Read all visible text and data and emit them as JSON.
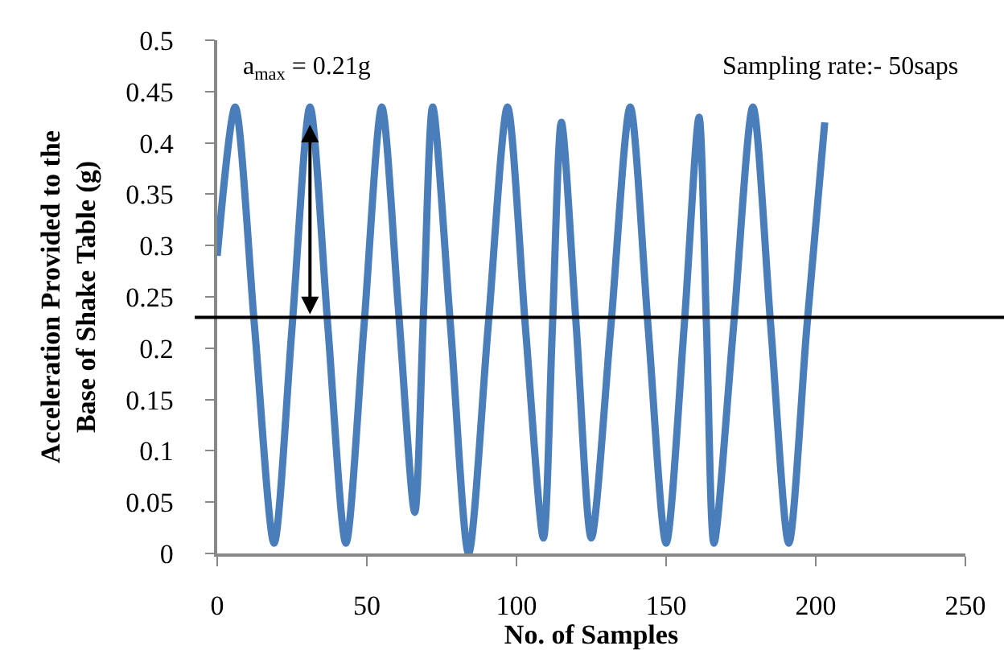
{
  "chart_data": {
    "type": "line",
    "xlabel": "No. of Samples",
    "ylabel": "Acceleration Provided to the\nBase of Shake Table (g)",
    "x": [
      0,
      6,
      12.5,
      19,
      25,
      31,
      37,
      43,
      49,
      55,
      60.5,
      66,
      69,
      72,
      78,
      84,
      90.5,
      97,
      103,
      109,
      112,
      115,
      120,
      125,
      131.5,
      138,
      144,
      150,
      156,
      161,
      163.5,
      166,
      172.5,
      179,
      185,
      191,
      197,
      203
    ],
    "series": [
      {
        "color": "#4a7ebb",
        "values": [
          0.29,
          0.435,
          0.22,
          0.01,
          0.22,
          0.435,
          0.22,
          0.01,
          0.22,
          0.435,
          0.24,
          0.04,
          0.24,
          0.435,
          0.22,
          0.0,
          0.22,
          0.435,
          0.22,
          0.015,
          0.22,
          0.42,
          0.22,
          0.015,
          0.22,
          0.435,
          0.22,
          0.01,
          0.22,
          0.425,
          0.22,
          0.01,
          0.22,
          0.435,
          0.22,
          0.01,
          0.22,
          0.42
        ]
      }
    ],
    "xlim": [
      0,
      250
    ],
    "xticks": [
      0,
      50,
      100,
      150,
      200,
      250
    ],
    "ylim": [
      0,
      0.5
    ],
    "yticks": [
      0,
      0.05,
      0.1,
      0.15,
      0.2,
      0.25,
      0.3,
      0.35,
      0.4,
      0.45,
      0.5
    ],
    "ref_lines": [
      {
        "axis": "y",
        "value": 0.23,
        "color": "#000000"
      }
    ],
    "annotations": [
      "a$_{max}$ = 0.21g",
      "Sampling rate:- 50saps"
    ],
    "grid": false,
    "marker": "none",
    "line_style": "solid"
  }
}
